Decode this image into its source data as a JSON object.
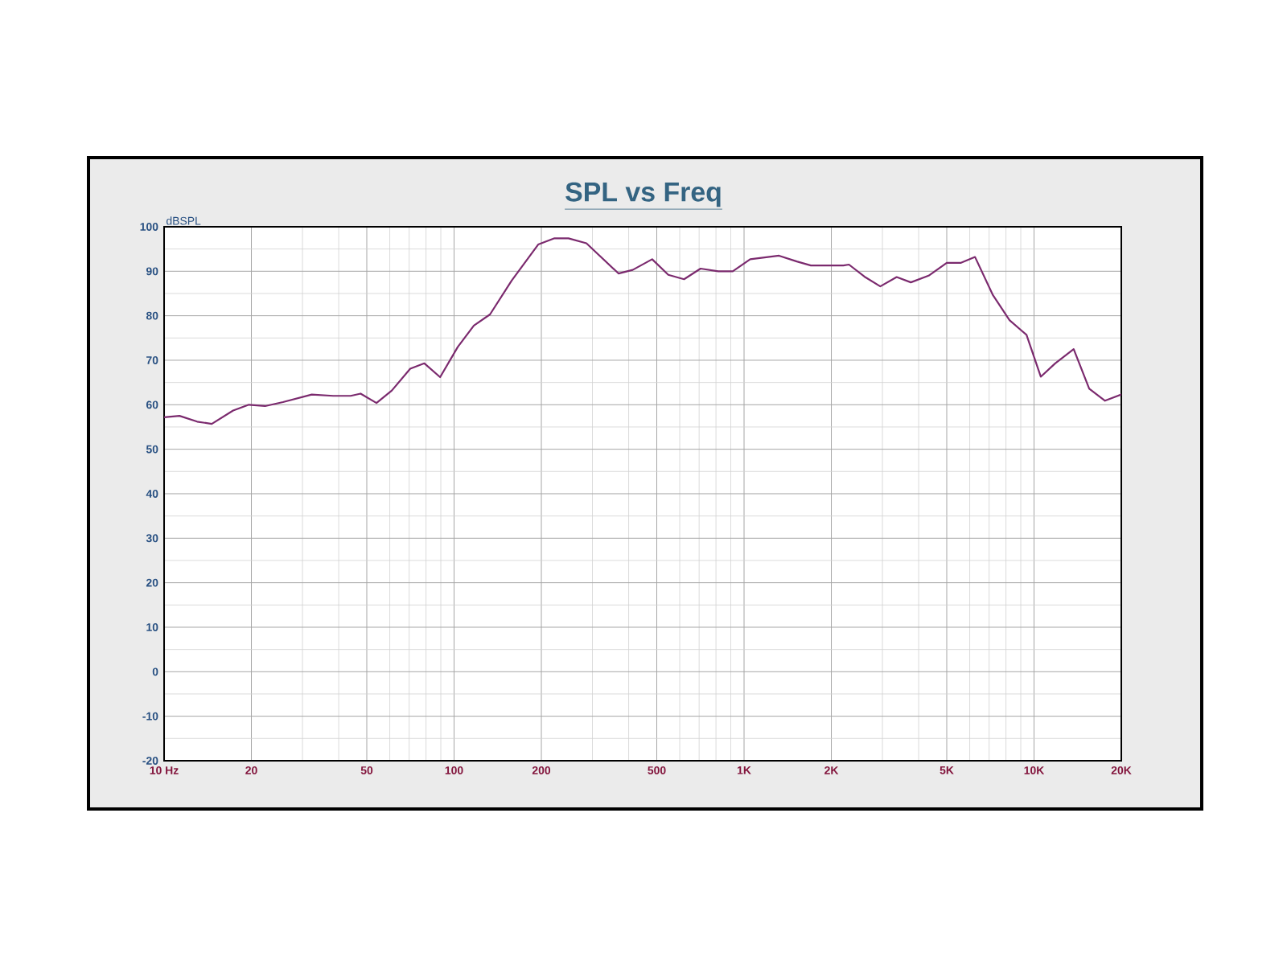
{
  "chart_data": {
    "type": "line",
    "title": "SPL vs Freq",
    "ylabel": "dBSPL",
    "log": "x",
    "grid": true,
    "marker": "none",
    "line_style": "solid",
    "xlim": [
      10,
      20000
    ],
    "ylim": [
      -20,
      100
    ],
    "xticks": [
      {
        "value": 10,
        "label": "10  Hz"
      },
      20,
      50,
      100,
      200,
      500,
      {
        "value": 1000,
        "label": "1K"
      },
      {
        "value": 2000,
        "label": "2K"
      },
      {
        "value": 5000,
        "label": "5K"
      },
      {
        "value": 10000,
        "label": "10K"
      },
      {
        "value": 20000,
        "label": "20K"
      }
    ],
    "yticks": [
      -20,
      -10,
      0,
      10,
      20,
      30,
      40,
      50,
      60,
      70,
      80,
      90,
      100
    ],
    "series": [
      {
        "color": "#7b2a6e",
        "x": [
          10,
          11.3,
          13,
          14.6,
          17.3,
          19.6,
          22.3,
          25.7,
          32.3,
          38.3,
          44,
          47.6,
          54,
          61,
          70.6,
          79,
          89.5,
          103,
          117,
          133,
          158,
          195,
          222,
          248,
          286,
          369,
          413,
          482,
          548,
          621,
          708,
          815,
          914,
          1050,
          1320,
          1520,
          1700,
          2200,
          2300,
          2600,
          2950,
          3360,
          3760,
          4330,
          5000,
          5600,
          6260,
          7220,
          8230,
          9420,
          10550,
          11830,
          13700,
          15500,
          17570,
          20000
        ],
        "values": [
          57.2,
          57.5,
          56.2,
          55.7,
          58.7,
          60,
          59.7,
          60.6,
          62.3,
          62,
          62,
          62.5,
          60.4,
          63.2,
          68.1,
          69.3,
          66.2,
          73,
          77.8,
          80.3,
          87.9,
          96,
          97.4,
          97.4,
          96.3,
          89.5,
          90.3,
          92.7,
          89.2,
          88.2,
          90.6,
          90,
          90,
          92.7,
          93.5,
          92.2,
          91.3,
          91.3,
          91.5,
          88.8,
          86.6,
          88.7,
          87.5,
          89,
          91.9,
          91.9,
          93.2,
          84.6,
          79,
          75.7,
          66.3,
          69.3,
          72.5,
          63.6,
          60.9,
          62.3
        ]
      }
    ]
  }
}
